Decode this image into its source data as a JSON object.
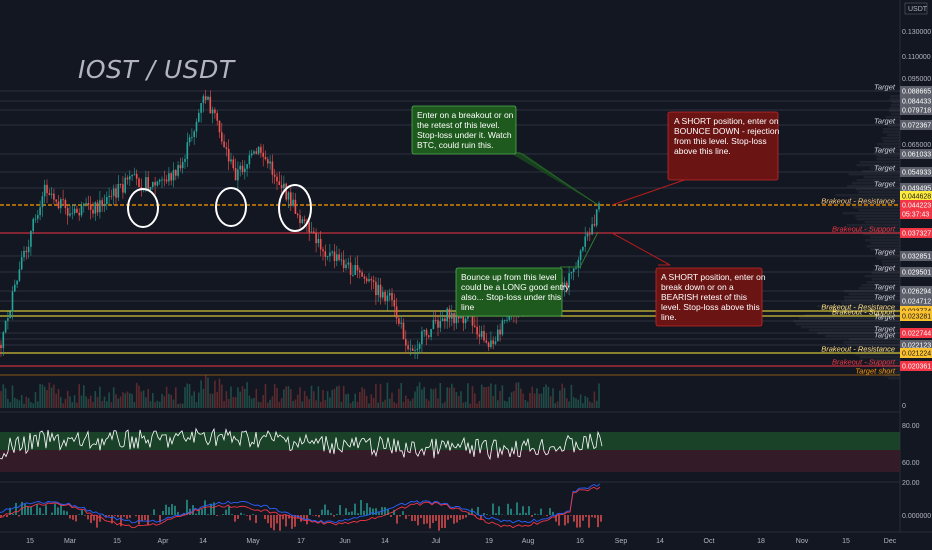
{
  "pair": "IOST / USDT",
  "currency_badge": "USDT",
  "colors": {
    "background": "#131722",
    "green_box": "#1e5a1e",
    "red_box": "#6b1414",
    "support_red": "#f23645",
    "breakout_orange": "#ff9800",
    "rsi_line": "#ffffff",
    "macd_blue": "#2962ff",
    "macd_red": "#f23645"
  },
  "annotations": [
    {
      "text": [
        "Enter on a breakout or on",
        "the retest of this level.",
        "Stop-loss under it. Watch",
        "BTC, could ruin this."
      ],
      "color": "green"
    },
    {
      "text": [
        "A SHORT position, enter on",
        "BOUNCE DOWN - rejection",
        "from this level. Stop-loss",
        "above this line."
      ],
      "color": "red"
    },
    {
      "text": [
        "Bounce up from this level",
        "could be a LONG good entry",
        "also... Stop-loss under this",
        "line"
      ],
      "color": "green"
    },
    {
      "text": [
        "A SHORT position, enter on",
        "break down or on a",
        "BEARISH retest of this",
        "level. Stop-loss above this",
        "line."
      ],
      "color": "red"
    }
  ],
  "chart_data": {
    "type": "candlestick",
    "title": "IOST / USDT",
    "y_axis_ticks": [
      "0.130000",
      "0.110000",
      "0.095000",
      "0.065000",
      "0.000000"
    ],
    "levels": [
      {
        "price": "0.088665",
        "label": "Target",
        "style": "target"
      },
      {
        "price": "0.084433",
        "label": "",
        "style": "target"
      },
      {
        "price": "0.079718",
        "label": "",
        "style": "target"
      },
      {
        "price": "0.072367",
        "label": "Target",
        "style": "target"
      },
      {
        "price": "0.061033",
        "label": "Target",
        "style": "target"
      },
      {
        "price": "0.054933",
        "label": "Target",
        "style": "target"
      },
      {
        "price": "0.049495",
        "label": "Target",
        "style": "target"
      },
      {
        "price": "0.044628",
        "label": "",
        "style": "current"
      },
      {
        "price": "0.044223",
        "label": "Brakeout - Resistance",
        "style": "breakout"
      },
      {
        "price": "05:37:43",
        "label": "",
        "style": "countdown"
      },
      {
        "price": "0.037327",
        "label": "Brakeout - Support",
        "style": "support"
      },
      {
        "price": "0.032851",
        "label": "Target",
        "style": "target"
      },
      {
        "price": "0.029501",
        "label": "Target",
        "style": "target"
      },
      {
        "price": "0.026294",
        "label": "Target",
        "style": "target"
      },
      {
        "price": "0.024712",
        "label": "Target",
        "style": "target"
      },
      {
        "price": "0.023774",
        "label": "Brakeout - Resistance",
        "style": "breakout_y"
      },
      {
        "price": "0.023281",
        "label": "Brakeout - Support",
        "style": "breakout_y"
      },
      {
        "price": "",
        "label": "Target",
        "style": "target"
      },
      {
        "price": "0.022744",
        "label": "Target",
        "style": "red_tag"
      },
      {
        "price": "",
        "label": "Target",
        "style": "target"
      },
      {
        "price": "0.022123",
        "label": "",
        "style": "target"
      },
      {
        "price": "0.021224",
        "label": "Brakeout - Resistance",
        "style": "breakout_y"
      },
      {
        "price": "0.020361",
        "label": "Brakeout - Support",
        "style": "support"
      },
      {
        "price": "",
        "label": "Target short",
        "style": "short"
      }
    ],
    "rsi_axis": [
      "80.00",
      "60.00",
      "40.00",
      "20.00"
    ],
    "macd_axis": [
      "0.000000"
    ],
    "volume_axis": [
      "0"
    ],
    "x_axis_labels": [
      "15",
      "Mar",
      "15",
      "Apr",
      "14",
      "May",
      "17",
      "Jun",
      "14",
      "Jul",
      "19",
      "Aug",
      "16",
      "Sep",
      "14",
      "Oct",
      "18",
      "Nov",
      "15",
      "Dec"
    ],
    "circled_retests": 3
  }
}
